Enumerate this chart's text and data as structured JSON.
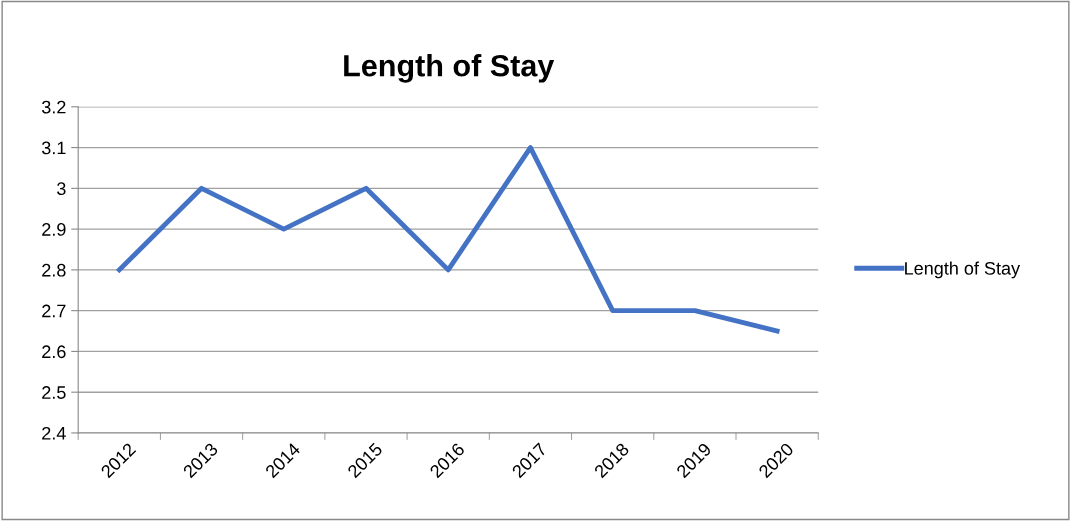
{
  "chart_data": {
    "type": "line",
    "title": "Length of Stay",
    "categories": [
      "2012",
      "2013",
      "2014",
      "2015",
      "2016",
      "2017",
      "2018",
      "2019",
      "2020"
    ],
    "series": [
      {
        "name": "Length of Stay",
        "color": "#4472c4",
        "values": [
          2.8,
          3,
          2.9,
          3,
          2.8,
          3.1,
          2.7,
          2.7,
          2.65
        ]
      }
    ],
    "ylim": [
      2.4,
      3.2
    ],
    "yticks": [
      2.4,
      2.5,
      2.6,
      2.7,
      2.8,
      2.9,
      3,
      3.1,
      3.2
    ],
    "grid": "y",
    "legend": "right",
    "marker": "none",
    "line_style": "solid"
  }
}
